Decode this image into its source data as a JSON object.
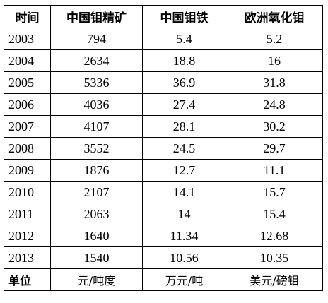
{
  "table": {
    "headers": [
      "时间",
      "中国钼精矿",
      "中国钼铁",
      "欧洲氧化钼"
    ],
    "rows": [
      [
        "2003",
        "794",
        "5.4",
        "5.2"
      ],
      [
        "2004",
        "2634",
        "18.8",
        "16"
      ],
      [
        "2005",
        "5336",
        "36.9",
        "31.8"
      ],
      [
        "2006",
        "4036",
        "27.4",
        "24.8"
      ],
      [
        "2007",
        "4107",
        "28.1",
        "30.2"
      ],
      [
        "2008",
        "3552",
        "24.5",
        "29.7"
      ],
      [
        "2009",
        "1876",
        "12.7",
        "11.1"
      ],
      [
        "2010",
        "2107",
        "14.1",
        "15.7"
      ],
      [
        "2011",
        "2063",
        "14",
        "15.4"
      ],
      [
        "2012",
        "1640",
        "11.34",
        "12.68"
      ],
      [
        "2013",
        "1540",
        "10.56",
        "10.35"
      ]
    ],
    "unit_row": [
      "单位",
      "元/吨度",
      "万元/吨",
      "美元/磅钼"
    ]
  }
}
